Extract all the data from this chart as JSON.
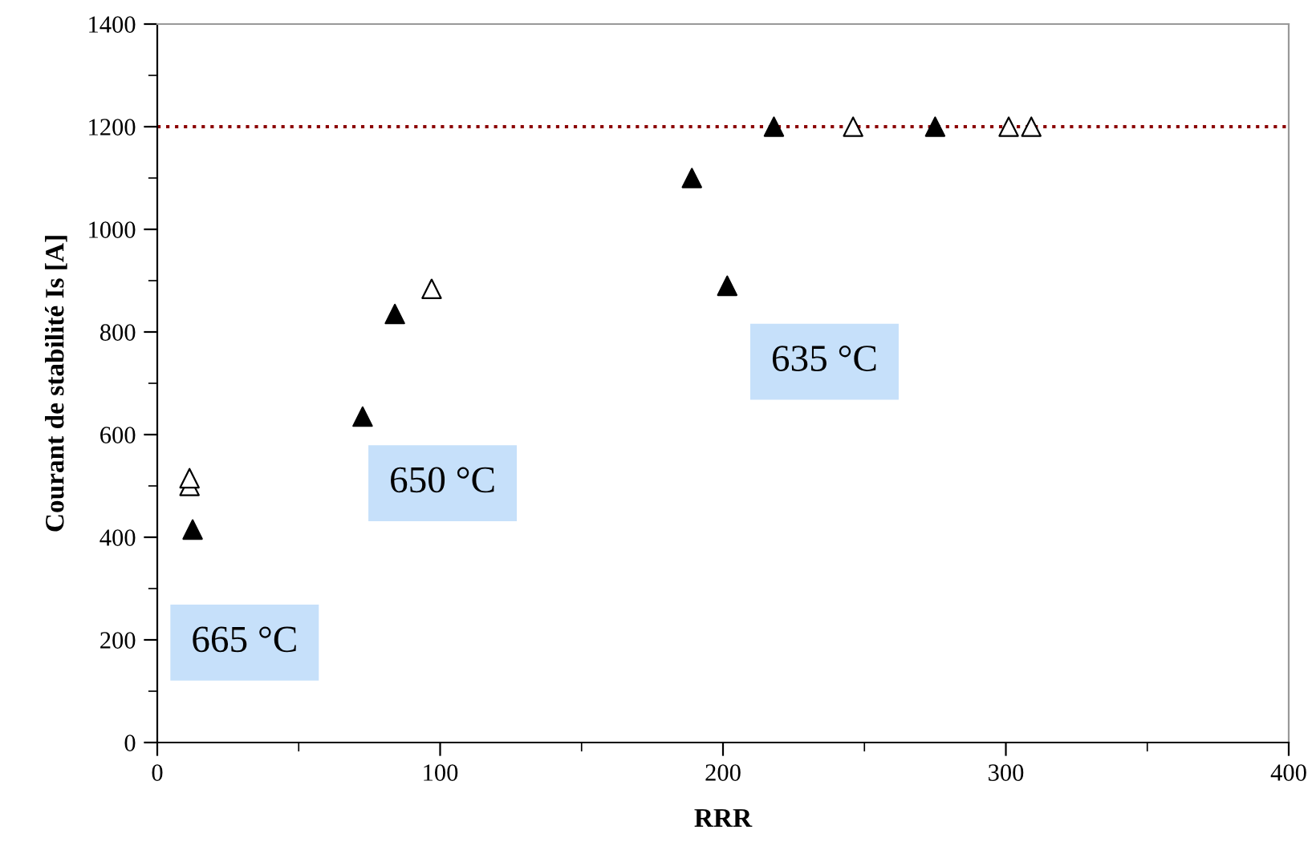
{
  "chart_data": {
    "type": "scatter",
    "xlabel": "RRR",
    "ylabel": "Courant de stabilité Is [A]",
    "xlim": [
      0,
      400
    ],
    "xticks": [
      0,
      100,
      200,
      300,
      400
    ],
    "ylim": [
      0,
      1400
    ],
    "yticks": [
      0,
      200,
      400,
      600,
      800,
      1000,
      1200,
      1400
    ],
    "marker": "triangle",
    "grid": false,
    "legend": false,
    "series": [
      {
        "color": "#000000",
        "x": [
          12.5,
          72.6,
          84,
          189,
          201.5,
          218,
          275
        ],
        "values": [
          415,
          635,
          835,
          1100,
          890,
          1200,
          1200
        ]
      },
      {
        "color": "#ffffff",
        "x": [
          11.4,
          11.4,
          97,
          246,
          301,
          309
        ],
        "values": [
          500,
          515,
          884,
          1200,
          1200,
          1200
        ]
      }
    ],
    "ref_lines": [
      {
        "axis": "y",
        "value": 1200,
        "color": "#8b0000",
        "line_style": "dotted"
      }
    ],
    "annotations": [
      "665 °C",
      "650 °C",
      "635 °C"
    ]
  }
}
